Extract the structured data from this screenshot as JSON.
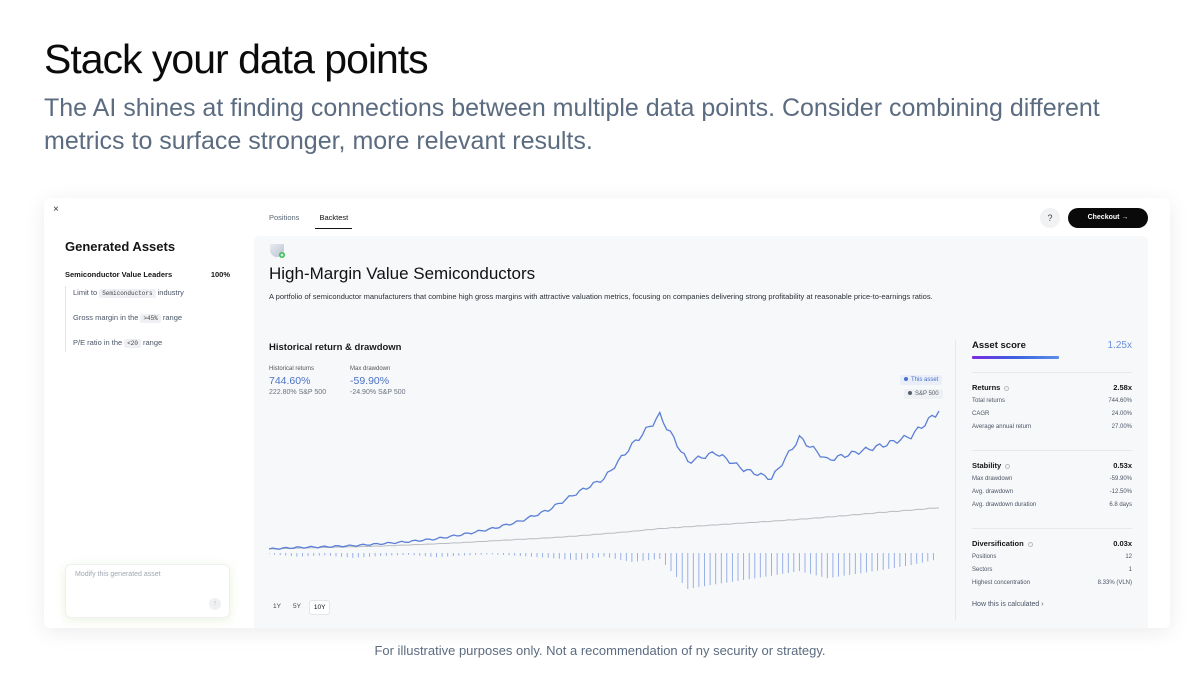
{
  "hero": {
    "title": "Stack your data points",
    "subtitle": "The AI shines at finding connections between multiple data points. Consider combining different metrics to surface stronger, more relevant results."
  },
  "footnote": "For illustrative purposes only. Not a recommendation of ny security or strategy.",
  "left_panel": {
    "close": "×",
    "title": "Generated Assets",
    "portfolio_name": "Semiconductor Value Leaders",
    "portfolio_pct": "100%",
    "criteria": [
      {
        "pre": "Limit to",
        "chip": "Semiconductors",
        "post": "industry"
      },
      {
        "pre": "Gross margin in the",
        "chip": ">45%",
        "post": "range"
      },
      {
        "pre": "P/E ratio in the",
        "chip": "<20",
        "post": "range"
      }
    ],
    "modify_placeholder": "Modify this generated asset",
    "send_icon": "↑"
  },
  "topbar": {
    "tabs": [
      {
        "label": "Positions",
        "active": false
      },
      {
        "label": "Backtest",
        "active": true
      }
    ],
    "help": "?",
    "checkout": "Checkout →"
  },
  "asset": {
    "title": "High-Margin Value Semiconductors",
    "description": "A portfolio of semiconductor manufacturers that combine high gross margins with attractive valuation metrics, focusing on companies delivering strong profitability at reasonable price-to-earnings ratios."
  },
  "chart_section": {
    "title": "Historical return & drawdown",
    "metrics": [
      {
        "label": "Historical returns",
        "value": "744.60%",
        "bench": "222.80% S&P 500"
      },
      {
        "label": "Max drawdown",
        "value": "-59.90%",
        "bench": "-24.90% S&P 500"
      }
    ],
    "legend": [
      "This asset",
      "S&P 500"
    ],
    "ranges": [
      {
        "label": "1Y",
        "active": false
      },
      {
        "label": "5Y",
        "active": false
      },
      {
        "label": "10Y",
        "active": true
      }
    ]
  },
  "chart_data": {
    "type": "line",
    "x_points": 25,
    "series": [
      {
        "name": "This asset",
        "values": [
          0,
          8,
          12,
          18,
          28,
          40,
          55,
          80,
          110,
          150,
          210,
          300,
          380,
          560,
          720,
          470,
          520,
          430,
          380,
          600,
          480,
          520,
          560,
          610,
          744.6
        ]
      },
      {
        "name": "S&P 500",
        "values": [
          0,
          4,
          8,
          12,
          16,
          22,
          28,
          35,
          44,
          52,
          60,
          70,
          82,
          95,
          110,
          120,
          130,
          140,
          150,
          160,
          172,
          185,
          198,
          210,
          222.8
        ]
      }
    ],
    "drawdown_series": [
      {
        "name": "This asset",
        "values": [
          -2,
          -6,
          -4,
          -8,
          -5,
          -3,
          -7,
          -4,
          -2,
          -5,
          -8,
          -12,
          -6,
          -15,
          -10,
          -59.9,
          -52,
          -45,
          -38,
          -30,
          -42,
          -35,
          -28,
          -20,
          -10
        ]
      },
      {
        "name": "S&P 500",
        "values": [
          -1,
          -3,
          -2,
          -4,
          -2,
          -1,
          -3,
          -2,
          -1,
          -2,
          -4,
          -5,
          -3,
          -7,
          -5,
          -24.9,
          -20,
          -17,
          -14,
          -11,
          -15,
          -12,
          -9,
          -6,
          -3
        ]
      }
    ],
    "colors": {
      "asset": "#5b7fd6",
      "benchmark": "#b8bcc2",
      "drawdown": "#8ea9e6"
    }
  },
  "score_panel": {
    "title": "Asset score",
    "value": "1.25x",
    "sections": [
      {
        "title": "Returns",
        "value": "2.58x",
        "rows": [
          {
            "label": "Total returns",
            "value": "744.60%"
          },
          {
            "label": "CAGR",
            "value": "24.00%"
          },
          {
            "label": "Average annual return",
            "value": "27.00%"
          }
        ]
      },
      {
        "title": "Stability",
        "value": "0.53x",
        "rows": [
          {
            "label": "Max drawdown",
            "value": "-59.90%"
          },
          {
            "label": "Avg. drawdown",
            "value": "-12.50%"
          },
          {
            "label": "Avg. drawdown duration",
            "value": "6.8 days"
          }
        ]
      },
      {
        "title": "Diversification",
        "value": "0.03x",
        "rows": [
          {
            "label": "Positions",
            "value": "12"
          },
          {
            "label": "Sectors",
            "value": "1"
          },
          {
            "label": "Highest concentration",
            "value": "8.33% (VLN)"
          }
        ]
      }
    ],
    "link": "How this is calculated ›"
  }
}
